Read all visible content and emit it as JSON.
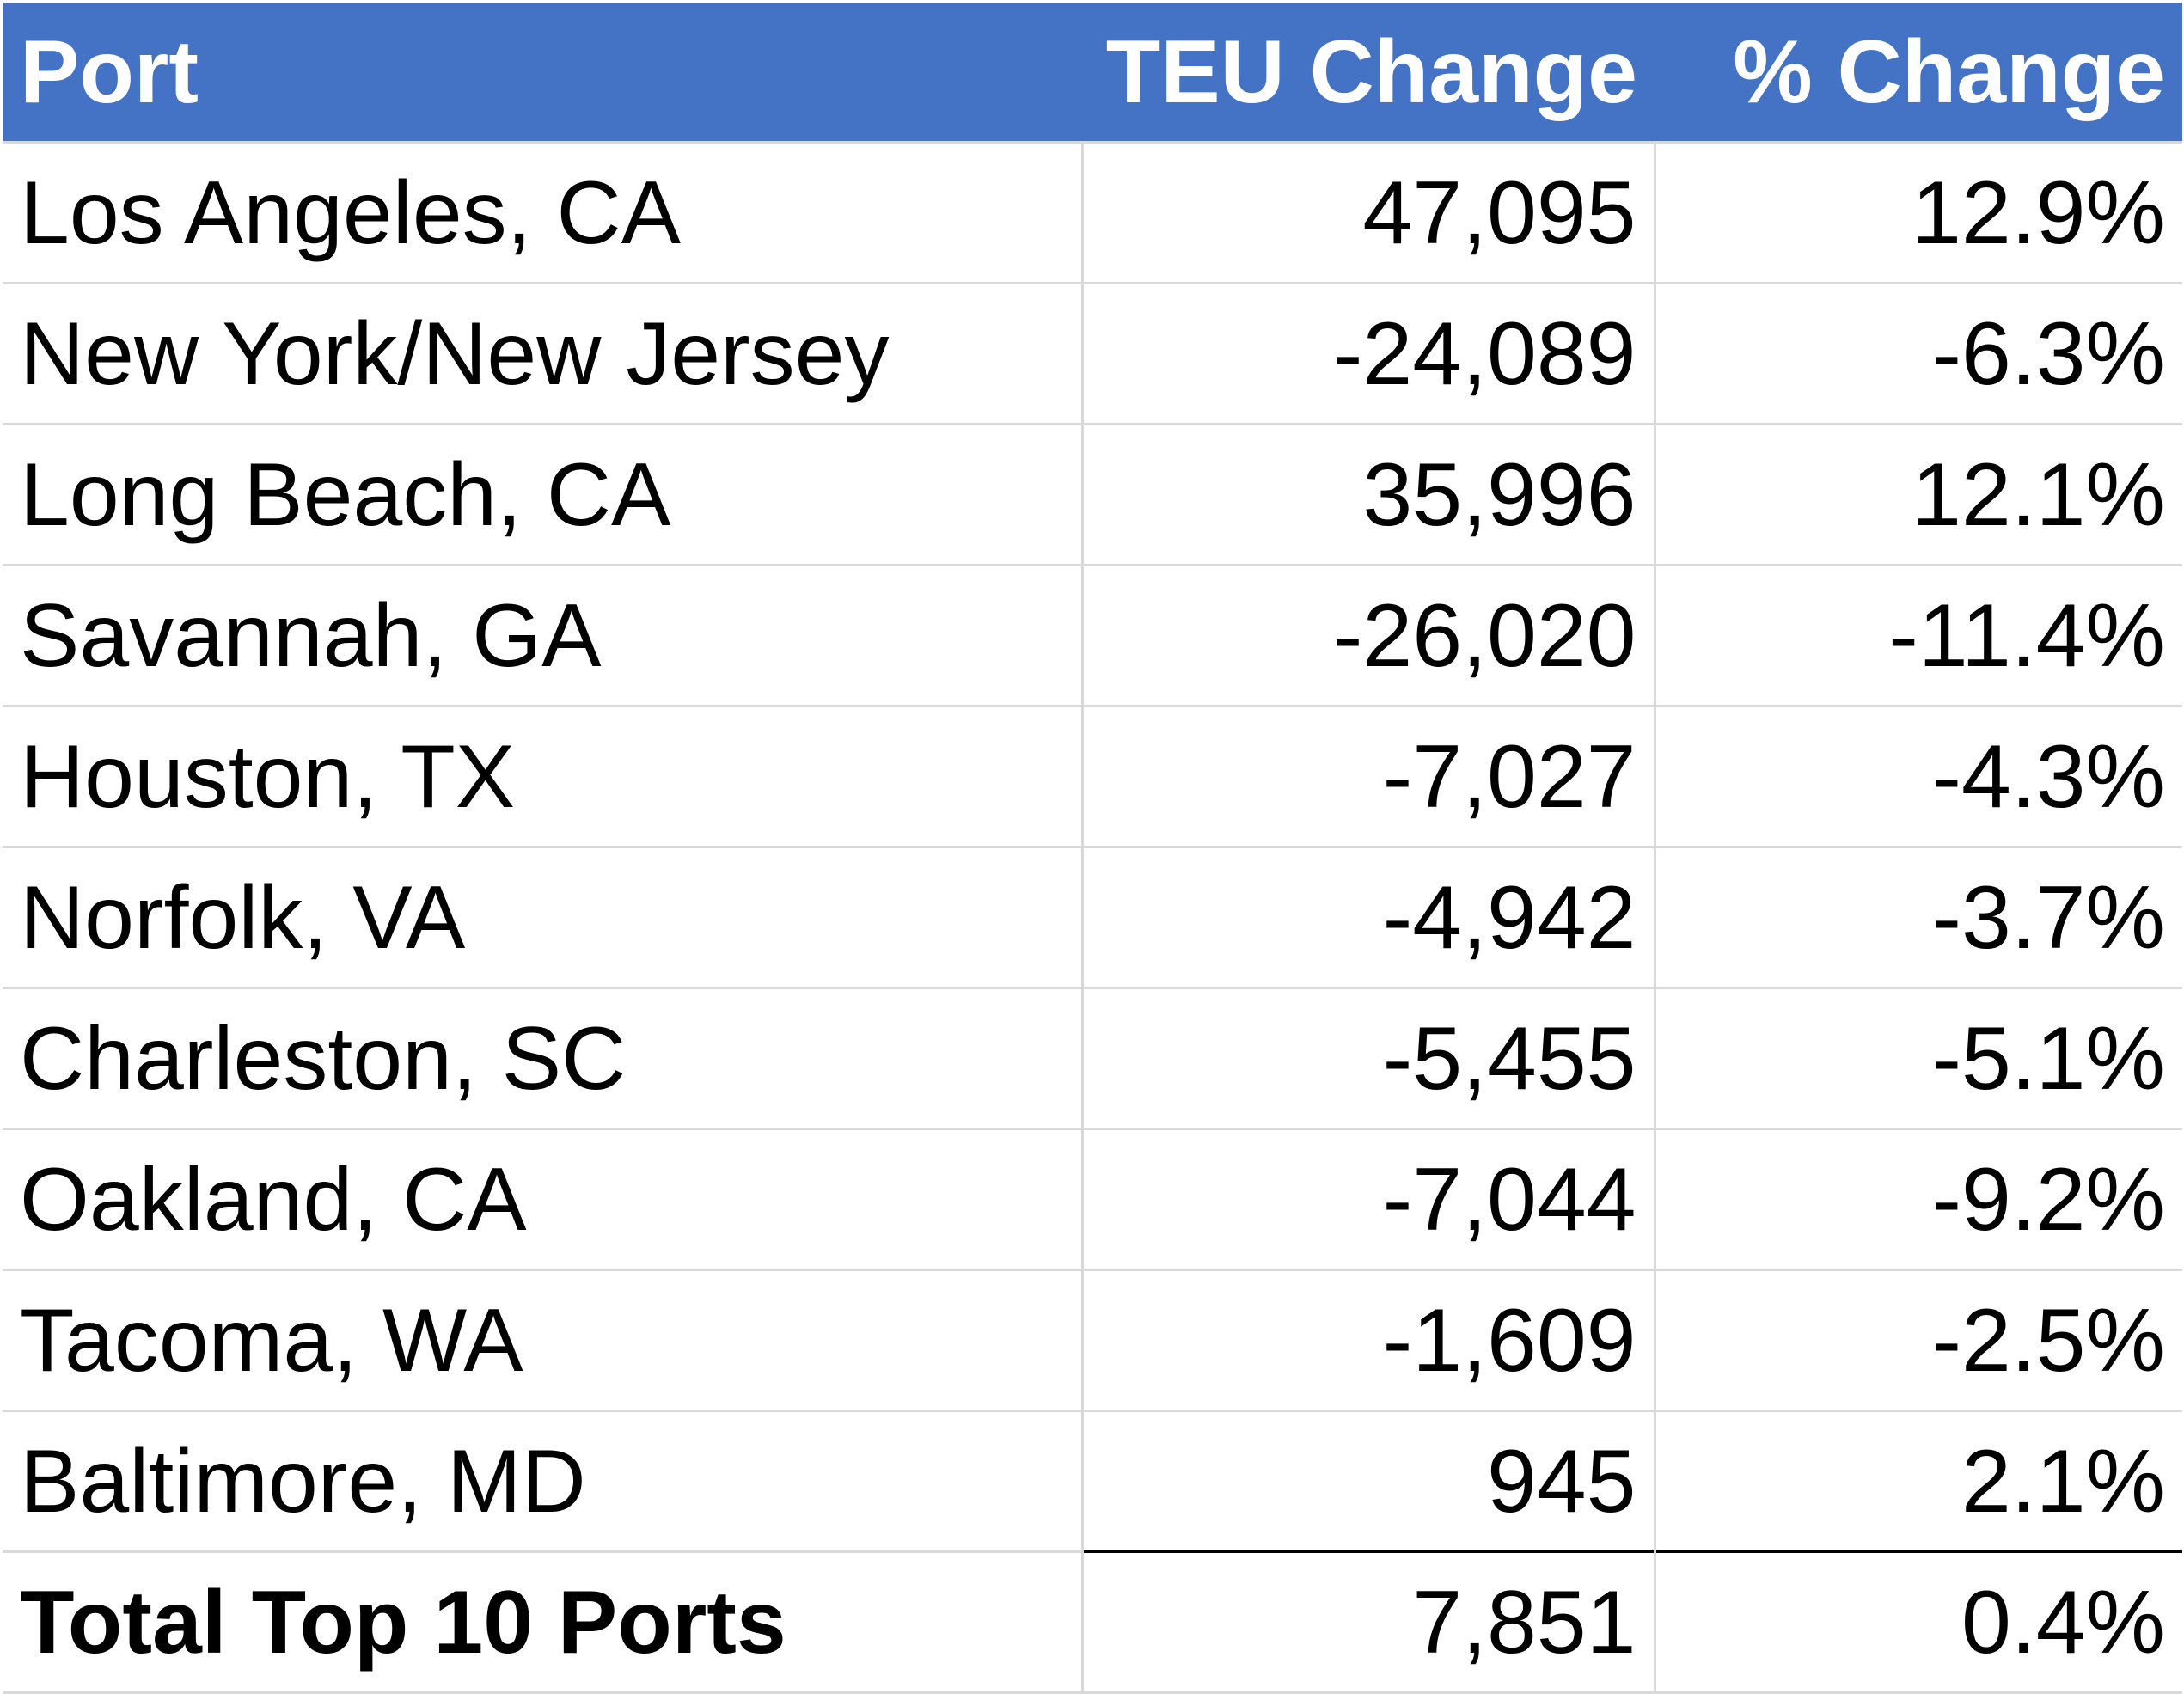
{
  "table": {
    "headers": {
      "port": "Port",
      "teu_change": "TEU Change",
      "pct_change": "% Change"
    },
    "rows": [
      {
        "port": "Los Angeles, CA",
        "teu_change": "47,095",
        "pct_change": "12.9%"
      },
      {
        "port": "New York/New Jersey",
        "teu_change": "-24,089",
        "pct_change": "-6.3%"
      },
      {
        "port": "Long Beach, CA",
        "teu_change": "35,996",
        "pct_change": "12.1%"
      },
      {
        "port": "Savannah, GA",
        "teu_change": "-26,020",
        "pct_change": "-11.4%"
      },
      {
        "port": "Houston, TX",
        "teu_change": "-7,027",
        "pct_change": "-4.3%"
      },
      {
        "port": "Norfolk, VA",
        "teu_change": "-4,942",
        "pct_change": "-3.7%"
      },
      {
        "port": "Charleston, SC",
        "teu_change": "-5,455",
        "pct_change": "-5.1%"
      },
      {
        "port": "Oakland, CA",
        "teu_change": "-7,044",
        "pct_change": "-9.2%"
      },
      {
        "port": "Tacoma, WA",
        "teu_change": "-1,609",
        "pct_change": "-2.5%"
      },
      {
        "port": "Baltimore, MD",
        "teu_change": "945",
        "pct_change": "2.1%"
      }
    ],
    "total": {
      "port": "Total Top 10 Ports",
      "teu_change": "7,851",
      "pct_change": "0.4%"
    }
  },
  "colors": {
    "header_background": "#4472c4",
    "header_text": "#ffffff",
    "gridline": "#d9d9d9",
    "total_rule": "#000000"
  }
}
